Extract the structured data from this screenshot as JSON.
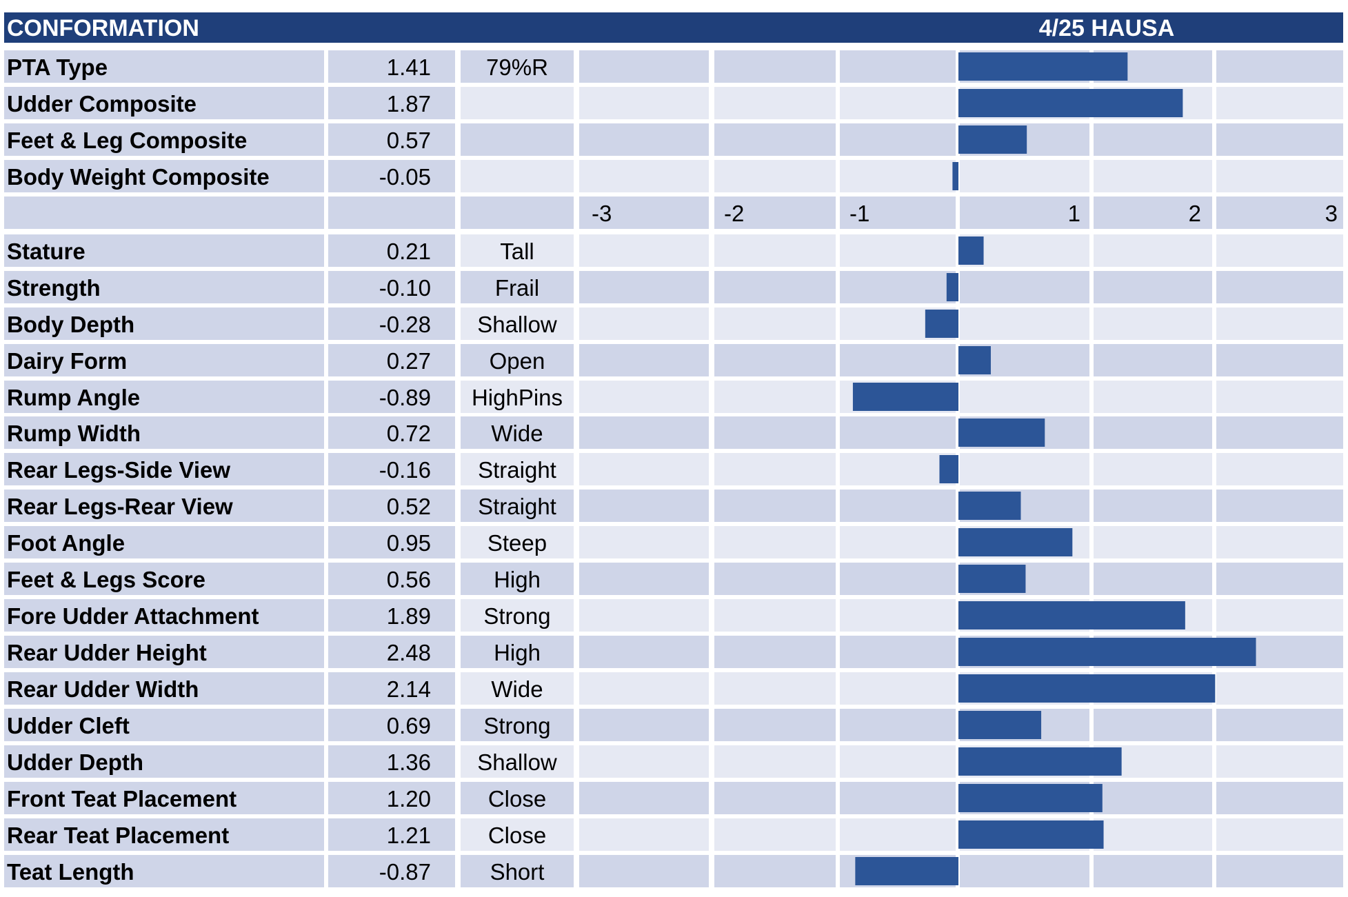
{
  "colors": {
    "header_bg": "#1f3f7a",
    "row_dark": "#cfd5e8",
    "row_light": "#e6e9f3",
    "bar": "#2c5597",
    "gap": "#ffffff"
  },
  "chart_data": {
    "type": "bar",
    "orientation": "horizontal",
    "title": "CONFORMATION",
    "source": "4/25 HAUSA",
    "xlim": [
      -3,
      3
    ],
    "axis_ticks": [
      "-3",
      "-2",
      "-1",
      "1",
      "2",
      "3"
    ],
    "composites": [
      {
        "label": "PTA Type",
        "value": 1.41,
        "value_text": "1.41",
        "extra": "79%R"
      },
      {
        "label": "Udder Composite",
        "value": 1.87,
        "value_text": "1.87",
        "extra": ""
      },
      {
        "label": "Feet & Leg Composite",
        "value": 0.57,
        "value_text": "0.57",
        "extra": ""
      },
      {
        "label": "Body Weight Composite",
        "value": -0.05,
        "value_text": "-0.05",
        "extra": ""
      }
    ],
    "traits": [
      {
        "label": "Stature",
        "value": 0.21,
        "value_text": "0.21",
        "extra": "Tall"
      },
      {
        "label": "Strength",
        "value": -0.1,
        "value_text": "-0.10",
        "extra": "Frail"
      },
      {
        "label": "Body Depth",
        "value": -0.28,
        "value_text": "-0.28",
        "extra": "Shallow"
      },
      {
        "label": "Dairy Form",
        "value": 0.27,
        "value_text": "0.27",
        "extra": "Open"
      },
      {
        "label": "Rump Angle",
        "value": -0.89,
        "value_text": "-0.89",
        "extra": "HighPins"
      },
      {
        "label": "Rump Width",
        "value": 0.72,
        "value_text": "0.72",
        "extra": "Wide"
      },
      {
        "label": "Rear Legs-Side View",
        "value": -0.16,
        "value_text": "-0.16",
        "extra": "Straight"
      },
      {
        "label": "Rear Legs-Rear View",
        "value": 0.52,
        "value_text": "0.52",
        "extra": "Straight"
      },
      {
        "label": "Foot Angle",
        "value": 0.95,
        "value_text": "0.95",
        "extra": "Steep"
      },
      {
        "label": "Feet & Legs Score",
        "value": 0.56,
        "value_text": "0.56",
        "extra": "High"
      },
      {
        "label": "Fore Udder Attachment",
        "value": 1.89,
        "value_text": "1.89",
        "extra": "Strong"
      },
      {
        "label": "Rear Udder Height",
        "value": 2.48,
        "value_text": "2.48",
        "extra": "High"
      },
      {
        "label": "Rear Udder Width",
        "value": 2.14,
        "value_text": "2.14",
        "extra": "Wide"
      },
      {
        "label": "Udder Cleft",
        "value": 0.69,
        "value_text": "0.69",
        "extra": "Strong"
      },
      {
        "label": "Udder Depth",
        "value": 1.36,
        "value_text": "1.36",
        "extra": "Shallow"
      },
      {
        "label": "Front Teat Placement",
        "value": 1.2,
        "value_text": "1.20",
        "extra": "Close"
      },
      {
        "label": "Rear Teat Placement",
        "value": 1.21,
        "value_text": "1.21",
        "extra": "Close"
      },
      {
        "label": "Teat Length",
        "value": -0.87,
        "value_text": "-0.87",
        "extra": "Short"
      }
    ]
  }
}
